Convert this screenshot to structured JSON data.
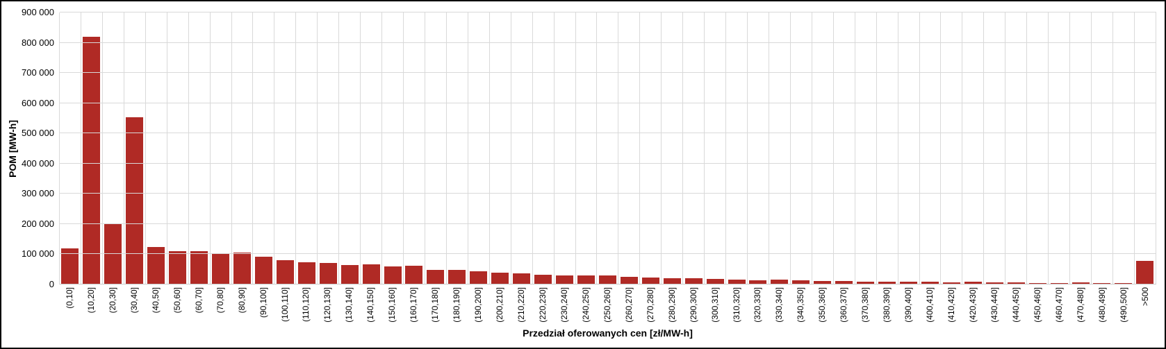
{
  "chart_data": {
    "type": "bar",
    "title": "",
    "xlabel": "Przedział oferowanych cen [zł/MW-h]",
    "ylabel": "POM [MW-h]",
    "ylim": [
      0,
      900000
    ],
    "ytick_interval": 100000,
    "ytick_labels": [
      "0",
      "100 000",
      "200 000",
      "300 000",
      "400 000",
      "500 000",
      "600 000",
      "700 000",
      "800 000",
      "900 000"
    ],
    "grid": "both",
    "legend_position": "none",
    "bar_color": "#b02a25",
    "grid_color": "#d9d9d9",
    "categories": [
      "(0,10]",
      "(10,20]",
      "(20,30]",
      "(30,40]",
      "(40,50]",
      "(50,60]",
      "(60,70]",
      "(70,80]",
      "(80,90]",
      "(90,100]",
      "(100,110]",
      "(110,120]",
      "(120,130]",
      "(130,140]",
      "(140,150]",
      "(150,160]",
      "(160,170]",
      "(170,180]",
      "(180,190]",
      "(190,200]",
      "(200,210]",
      "(210,220]",
      "(220,230]",
      "(230,240]",
      "(240,250]",
      "(250,260]",
      "(260,270]",
      "(270,280]",
      "(280,290]",
      "(290,300]",
      "(300,310]",
      "(310,320]",
      "(320,330]",
      "(330,340]",
      "(340,350]",
      "(350,360]",
      "(360,370]",
      "(370,380]",
      "(380,390]",
      "(390,400]",
      "(400,410]",
      "(410,420]",
      "(420,430]",
      "(430,440]",
      "(440,450]",
      "(450,460]",
      "(460,470]",
      "(470,480]",
      "(480,490]",
      "(490,500]",
      ">500"
    ],
    "values": [
      120000,
      820000,
      203000,
      553000,
      123000,
      110000,
      111000,
      100000,
      106000,
      93000,
      81000,
      73000,
      71000,
      65000,
      66000,
      59000,
      63000,
      48000,
      48000,
      44000,
      39000,
      36000,
      33000,
      29000,
      29000,
      31000,
      25000,
      23000,
      21000,
      21000,
      19000,
      16000,
      14000,
      17000,
      14000,
      12000,
      12000,
      9000,
      9000,
      9000,
      9000,
      7000,
      9000,
      7000,
      7000,
      5000,
      5000,
      6000,
      5000,
      4000,
      78000
    ]
  }
}
